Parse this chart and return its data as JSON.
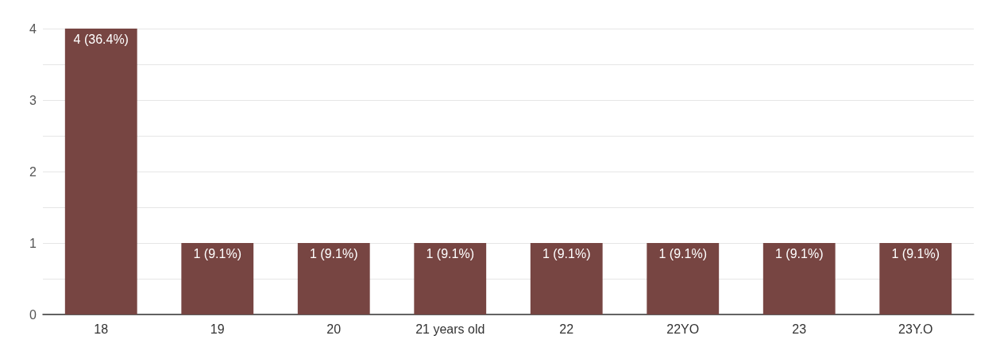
{
  "chart_data": {
    "type": "bar",
    "categories": [
      "18",
      "19",
      "20",
      "21 years old",
      "22",
      "22YO",
      "23",
      "23Y.O"
    ],
    "values": [
      4,
      1,
      1,
      1,
      1,
      1,
      1,
      1
    ],
    "value_labels": [
      "4 (36.4%)",
      "1 (9.1%)",
      "1 (9.1%)",
      "1 (9.1%)",
      "1 (9.1%)",
      "1 (9.1%)",
      "1 (9.1%)",
      "1 (9.1%)"
    ],
    "color": "#774542",
    "ylim": [
      0,
      4
    ],
    "yticks": [
      0,
      {
        "value": 0.5,
        "label": null
      },
      1,
      {
        "value": 1.5,
        "label": null
      },
      2,
      {
        "value": 2.5,
        "label": null
      },
      3,
      {
        "value": 3.5,
        "label": null
      },
      4
    ],
    "grid": true
  }
}
